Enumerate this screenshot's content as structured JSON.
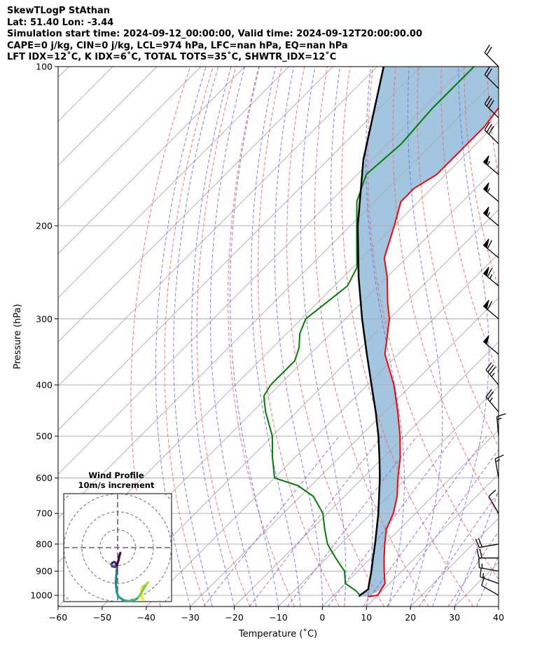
{
  "header": {
    "line1": "SkewTLogP StAthan",
    "line2": "Lat: 51.40   Lon: -3.44",
    "line3": "Simulation start time: 2024-09-12_00:00:00, Valid time: 2024-09-12T20:00:00.00",
    "line4": "CAPE=0 j/kg, CIN=0 j/kg, LCL=974 hPa, LFC=nan hPa, EQ=nan hPa",
    "line5": "LFT IDX=12˚C, K IDX=6˚C, TOTAL TOTS=35˚C, SHWTR_IDX=12˚C"
  },
  "chart_data": {
    "type": "skewt",
    "xlabel": "Temperature (˚C)",
    "ylabel": "Pressure (hPa)",
    "xlim": [
      -60,
      40
    ],
    "ylim": [
      1050,
      100
    ],
    "x_ticks": [
      -60,
      -50,
      -40,
      -30,
      -20,
      -10,
      0,
      10,
      20,
      30,
      40
    ],
    "x_tick_labels": [
      "−60",
      "−50",
      "−40",
      "−30",
      "−20",
      "−10",
      "0",
      "10",
      "20",
      "30",
      "40"
    ],
    "y_ticks": [
      1000,
      900,
      800,
      700,
      600,
      500,
      400,
      300,
      200,
      100
    ],
    "y_tick_labels": [
      "1000",
      "900",
      "800",
      "700",
      "600",
      "500",
      "400",
      "300",
      "200",
      "100"
    ],
    "grid": true,
    "colors": {
      "temperature": "#ff0000",
      "dewpoint": "#008000",
      "parcel": "#000000",
      "shade": "#a2c6e0",
      "isotherm": "#aaaaaa",
      "dry_adiabat": "#ff6060",
      "moist_adiabat": "#5a6ef0",
      "mixing_ratio": "#9a55d6"
    },
    "temperature": {
      "name": "Temperature",
      "pressure": [
        1005,
        1000,
        950,
        900,
        850,
        800,
        750,
        700,
        650,
        600,
        550,
        500,
        450,
        400,
        350,
        300,
        280,
        250,
        230,
        200,
        180,
        170,
        160,
        150,
        140,
        130,
        120,
        110,
        100
      ],
      "values": [
        8,
        10,
        9,
        6,
        3,
        0,
        -3,
        -5,
        -8,
        -12,
        -16,
        -21,
        -27,
        -34,
        -43,
        -50,
        -54,
        -60,
        -65,
        -70,
        -74,
        -74,
        -72,
        -72,
        -72,
        -72,
        -73,
        -74,
        -76
      ]
    },
    "dewpoint": {
      "name": "Dewpoint",
      "pressure": [
        1005,
        1000,
        980,
        950,
        900,
        850,
        800,
        750,
        700,
        650,
        620,
        600,
        550,
        500,
        450,
        420,
        400,
        360,
        340,
        320,
        300,
        260,
        240,
        210,
        180,
        160,
        140,
        120,
        100
      ],
      "values": [
        6,
        6,
        4,
        0,
        -3,
        -8,
        -13,
        -17,
        -21,
        -27,
        -33,
        -40,
        -45,
        -50,
        -57,
        -61,
        -62,
        -62,
        -64,
        -67,
        -69,
        -67,
        -69,
        -76,
        -84,
        -88,
        -87,
        -88,
        -88
      ]
    },
    "parcel": {
      "name": "Parcel",
      "pressure": [
        1005,
        1000,
        974,
        950,
        900,
        850,
        800,
        750,
        700,
        650,
        600,
        550,
        500,
        450,
        400,
        350,
        300,
        250,
        200,
        150,
        100
      ],
      "values": [
        6,
        6,
        6.5,
        5.4,
        3.1,
        0.5,
        -2.2,
        -5.2,
        -8.4,
        -12.1,
        -16.1,
        -20.7,
        -25.9,
        -32.0,
        -39.1,
        -47.1,
        -56.2,
        -66.5,
        -78.3,
        -92.0,
        -108.5
      ]
    },
    "wind_barbs": [
      {
        "pressure": 1000,
        "speed_kt": 10,
        "direction_deg": 300
      },
      {
        "pressure": 950,
        "speed_kt": 15,
        "direction_deg": 290
      },
      {
        "pressure": 900,
        "speed_kt": 15,
        "direction_deg": 280
      },
      {
        "pressure": 850,
        "speed_kt": 20,
        "direction_deg": 270
      },
      {
        "pressure": 800,
        "speed_kt": 20,
        "direction_deg": 260
      },
      {
        "pressure": 700,
        "speed_kt": 10,
        "direction_deg": 330
      },
      {
        "pressure": 600,
        "speed_kt": 15,
        "direction_deg": 350
      },
      {
        "pressure": 500,
        "speed_kt": 15,
        "direction_deg": 355
      },
      {
        "pressure": 450,
        "speed_kt": 25,
        "direction_deg": 320
      },
      {
        "pressure": 400,
        "speed_kt": 35,
        "direction_deg": 320
      },
      {
        "pressure": 350,
        "speed_kt": 50,
        "direction_deg": 310
      },
      {
        "pressure": 300,
        "speed_kt": 60,
        "direction_deg": 310
      },
      {
        "pressure": 260,
        "speed_kt": 65,
        "direction_deg": 310
      },
      {
        "pressure": 230,
        "speed_kt": 60,
        "direction_deg": 310
      },
      {
        "pressure": 200,
        "speed_kt": 55,
        "direction_deg": 310
      },
      {
        "pressure": 180,
        "speed_kt": 55,
        "direction_deg": 310
      },
      {
        "pressure": 160,
        "speed_kt": 55,
        "direction_deg": 310
      },
      {
        "pressure": 140,
        "speed_kt": 30,
        "direction_deg": 315
      },
      {
        "pressure": 125,
        "speed_kt": 30,
        "direction_deg": 315
      },
      {
        "pressure": 110,
        "speed_kt": 20,
        "direction_deg": 315
      },
      {
        "pressure": 100,
        "speed_kt": 20,
        "direction_deg": 315
      }
    ],
    "hodograph": {
      "title": "Wind Profile",
      "subtitle": "10m/s increment",
      "ring_increment_ms": 10,
      "u": [
        14.5,
        13.5,
        13.5,
        13.2,
        14.0,
        15.5,
        17.0,
        15.5,
        14.0,
        12.5,
        11.0,
        9.0,
        7.0,
        3.5,
        0.5,
        -0.5,
        -0.8,
        -1.0,
        -0.8,
        -0.5,
        -0.3,
        -0.8,
        -1.5,
        -3.0,
        -3.5,
        -3.0,
        -1.8,
        -1.0,
        -0.5,
        0.5,
        1.0,
        1.5
      ],
      "v": [
        -29.5,
        -27.5,
        -25.5,
        -23.5,
        -22.0,
        -21.0,
        -19.5,
        -21.5,
        -24.0,
        -26.5,
        -28.5,
        -29.5,
        -30.0,
        -29.5,
        -27.5,
        -25.0,
        -22.0,
        -19.0,
        -16.0,
        -13.0,
        -11.0,
        -10.5,
        -10.8,
        -10.5,
        -9.5,
        -8.5,
        -8.0,
        -8.8,
        -10.0,
        -7.0,
        -4.5,
        -3.0
      ]
    }
  }
}
